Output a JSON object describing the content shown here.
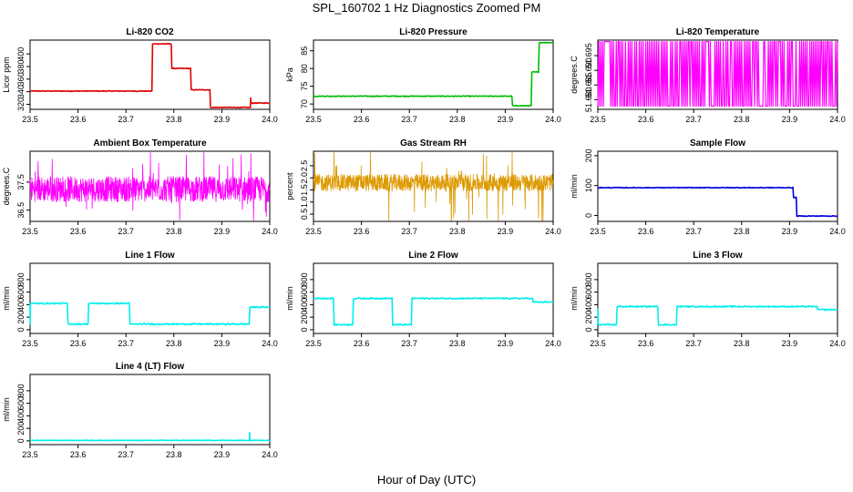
{
  "figure": {
    "title": "SPL_160702  1 Hz Diagnostics Zoomed PM",
    "xlabel": "Hour of Day (UTC)"
  },
  "chart_data": [
    {
      "type": "line",
      "title": "Li-820 CO2",
      "ylabel": "Licor ppm",
      "color": "#dd0000",
      "xlim": [
        23.5,
        24.0
      ],
      "ylim": [
        312,
        422
      ],
      "xticks": [
        "23.5",
        "23.6",
        "23.7",
        "23.8",
        "23.9",
        "24.0"
      ],
      "yticks": [
        320,
        340,
        360,
        380,
        400
      ],
      "noise": 0.6,
      "segments": [
        {
          "x0": 23.5,
          "x1": 23.755,
          "y": 341
        },
        {
          "x0": 23.755,
          "x1": 23.795,
          "y": 416
        },
        {
          "x0": 23.795,
          "x1": 23.835,
          "y": 377
        },
        {
          "x0": 23.835,
          "x1": 23.875,
          "y": 343
        },
        {
          "x0": 23.875,
          "x1": 23.96,
          "y": 315
        },
        {
          "x0": 23.96,
          "x1": 24.0,
          "y": 322
        }
      ],
      "spikes": [
        {
          "x": 23.96,
          "y": 330
        }
      ]
    },
    {
      "type": "line",
      "title": "Li-820 Pressure",
      "ylabel": "kPa",
      "color": "#00bb00",
      "xlim": [
        23.5,
        24.0
      ],
      "ylim": [
        68.5,
        88.0
      ],
      "xticks": [
        "23.5",
        "23.6",
        "23.7",
        "23.8",
        "23.9",
        "24.0"
      ],
      "yticks": [
        70,
        75,
        80,
        85
      ],
      "noise": 0.1,
      "segments": [
        {
          "x0": 23.5,
          "x1": 23.915,
          "y": 72.2
        },
        {
          "x0": 23.915,
          "x1": 23.955,
          "y": 69.5
        },
        {
          "x0": 23.955,
          "x1": 23.97,
          "y": 79.0
        },
        {
          "x0": 23.97,
          "x1": 24.0,
          "y": 87.3
        }
      ],
      "spikes": []
    },
    {
      "type": "line",
      "title": "Li-820 Temperature",
      "ylabel": "degrees.C",
      "color": "#ff00ff",
      "xlim": [
        23.5,
        24.0
      ],
      "ylim": [
        51.6767,
        51.7003
      ],
      "xticks": [
        "23.5",
        "23.6",
        "23.7",
        "23.8",
        "23.9",
        "24.0"
      ],
      "yticks": [
        "51.680",
        "51.685",
        "51.690",
        "51.695"
      ],
      "digital": {
        "low": 51.6778,
        "high": 51.6998
      }
    },
    {
      "type": "line",
      "title": "Ambient Box Temperature",
      "ylabel": "degrees.C",
      "color": "#ff00ff",
      "xlim": [
        23.5,
        24.0
      ],
      "ylim": [
        36.1,
        38.6
      ],
      "xticks": [
        "23.5",
        "23.6",
        "23.7",
        "23.8",
        "23.9",
        "24.0"
      ],
      "yticks": [
        "36.5",
        "37.5"
      ],
      "band": {
        "center": 37.25,
        "amp": 0.45,
        "spike": 0.25
      }
    },
    {
      "type": "line",
      "title": "Gas Stream RH",
      "ylabel": "percent",
      "color": "#dd9900",
      "xlim": [
        23.5,
        24.0
      ],
      "ylim": [
        0.2,
        3.1
      ],
      "xticks": [
        "23.5",
        "23.6",
        "23.7",
        "23.8",
        "23.9",
        "24.0"
      ],
      "yticks": [
        "0.5",
        "1.0",
        "1.5",
        "2.0",
        "2.5"
      ],
      "band": {
        "center": 1.8,
        "amp": 0.35,
        "spike": 0.8
      }
    },
    {
      "type": "line",
      "title": "Sample Flow",
      "ylabel": "ml/min",
      "color": "#0000dd",
      "xlim": [
        23.5,
        24.0
      ],
      "ylim": [
        -20,
        215
      ],
      "xticks": [
        "23.5",
        "23.6",
        "23.7",
        "23.8",
        "23.9",
        "24.0"
      ],
      "yticks": [
        0,
        100,
        200
      ],
      "noise": 1.2,
      "segments": [
        {
          "x0": 23.5,
          "x1": 23.908,
          "y": 93
        },
        {
          "x0": 23.908,
          "x1": 23.915,
          "y": 60
        },
        {
          "x0": 23.915,
          "x1": 24.0,
          "y": -2
        }
      ],
      "spikes": []
    },
    {
      "type": "line",
      "title": "Line 1 Flow",
      "ylabel": "ml/min",
      "color": "#00eeee",
      "xlim": [
        23.5,
        24.0
      ],
      "ylim": [
        -60,
        1060
      ],
      "xticks": [
        "23.5",
        "23.6",
        "23.7",
        "23.8",
        "23.9",
        "24.0"
      ],
      "yticks": [
        0,
        200,
        400,
        600,
        800
      ],
      "noise": 10,
      "segments": [
        {
          "x0": 23.5,
          "x1": 23.578,
          "y": 420
        },
        {
          "x0": 23.578,
          "x1": 23.622,
          "y": 90
        },
        {
          "x0": 23.622,
          "x1": 23.708,
          "y": 420
        },
        {
          "x0": 23.708,
          "x1": 23.958,
          "y": 90
        },
        {
          "x0": 23.958,
          "x1": 24.0,
          "y": 360
        }
      ],
      "spikes": [
        {
          "x": 23.5,
          "y": 90
        }
      ]
    },
    {
      "type": "line",
      "title": "Line 2 Flow",
      "ylabel": "ml/min",
      "color": "#00eeee",
      "xlim": [
        23.5,
        24.0
      ],
      "ylim": [
        -60,
        1060
      ],
      "xticks": [
        "23.5",
        "23.6",
        "23.7",
        "23.8",
        "23.9",
        "24.0"
      ],
      "yticks": [
        0,
        200,
        400,
        600,
        800
      ],
      "noise": 10,
      "segments": [
        {
          "x0": 23.5,
          "x1": 23.542,
          "y": 500
        },
        {
          "x0": 23.542,
          "x1": 23.582,
          "y": 80
        },
        {
          "x0": 23.582,
          "x1": 23.665,
          "y": 500
        },
        {
          "x0": 23.665,
          "x1": 23.705,
          "y": 80
        },
        {
          "x0": 23.705,
          "x1": 23.958,
          "y": 500
        },
        {
          "x0": 23.958,
          "x1": 24.0,
          "y": 440
        }
      ],
      "spikes": []
    },
    {
      "type": "line",
      "title": "Line 3 Flow",
      "ylabel": "ml/min",
      "color": "#00eeee",
      "xlim": [
        23.5,
        24.0
      ],
      "ylim": [
        -60,
        1060
      ],
      "xticks": [
        "23.5",
        "23.6",
        "23.7",
        "23.8",
        "23.9",
        "24.0"
      ],
      "yticks": [
        0,
        200,
        400,
        600,
        800
      ],
      "noise": 10,
      "segments": [
        {
          "x0": 23.5,
          "x1": 23.54,
          "y": 80
        },
        {
          "x0": 23.54,
          "x1": 23.625,
          "y": 370
        },
        {
          "x0": 23.625,
          "x1": 23.665,
          "y": 80
        },
        {
          "x0": 23.665,
          "x1": 23.958,
          "y": 370
        },
        {
          "x0": 23.958,
          "x1": 24.0,
          "y": 320
        }
      ],
      "spikes": [
        {
          "x": 23.5,
          "y": 330
        }
      ]
    },
    {
      "type": "line",
      "title": "Line 4 (LT) Flow",
      "ylabel": "ml/min",
      "color": "#00eeee",
      "xlim": [
        23.5,
        24.0
      ],
      "ylim": [
        -60,
        1060
      ],
      "xticks": [
        "23.5",
        "23.6",
        "23.7",
        "23.8",
        "23.9",
        "24.0"
      ],
      "yticks": [
        0,
        200,
        400,
        600,
        800
      ],
      "noise": 4,
      "segments": [
        {
          "x0": 23.5,
          "x1": 24.0,
          "y": 8
        }
      ],
      "spikes": [
        {
          "x": 23.958,
          "y": 130
        }
      ]
    }
  ]
}
